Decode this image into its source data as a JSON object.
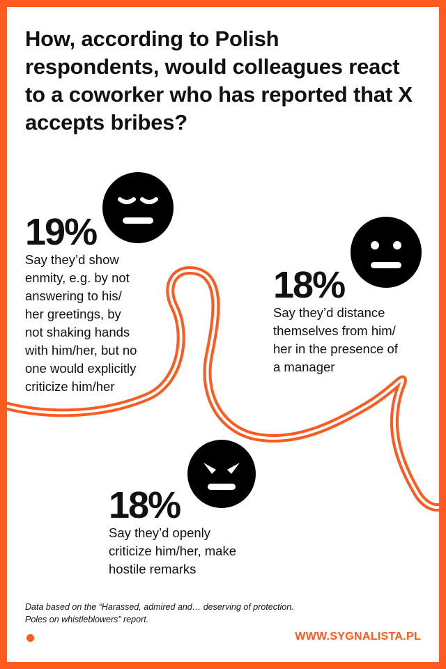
{
  "title": "How, according to Polish respondents, would colleagues react to a coworker who has reported that X accepts bribes?",
  "stats": [
    {
      "percent": "19%",
      "lines": [
        "Say they’d show",
        "enmity, e.g. by not",
        "answering to his/",
        "her greetings, by",
        "not shaking hands",
        "with him/her, but no",
        "one would explicitly",
        "criticize him/her"
      ],
      "icon": "annoyed-face-icon"
    },
    {
      "percent": "18%",
      "lines": [
        "Say they’d distance",
        "themselves from him/",
        "her in the presence of",
        "a manager"
      ],
      "icon": "neutral-face-icon"
    },
    {
      "percent": "18%",
      "lines": [
        "Say they’d openly",
        "criticize him/her, make",
        "hostile remarks"
      ],
      "icon": "angry-face-icon"
    }
  ],
  "source": [
    "Data based on the “Harassed, admired and… deserving of protection.",
    "Poles on whistleblowers” report."
  ],
  "website": "WWW.SYGNALISTA.PL",
  "colors": {
    "accent": "#ff5a1f",
    "text": "#111111",
    "background": "#ffffff"
  }
}
